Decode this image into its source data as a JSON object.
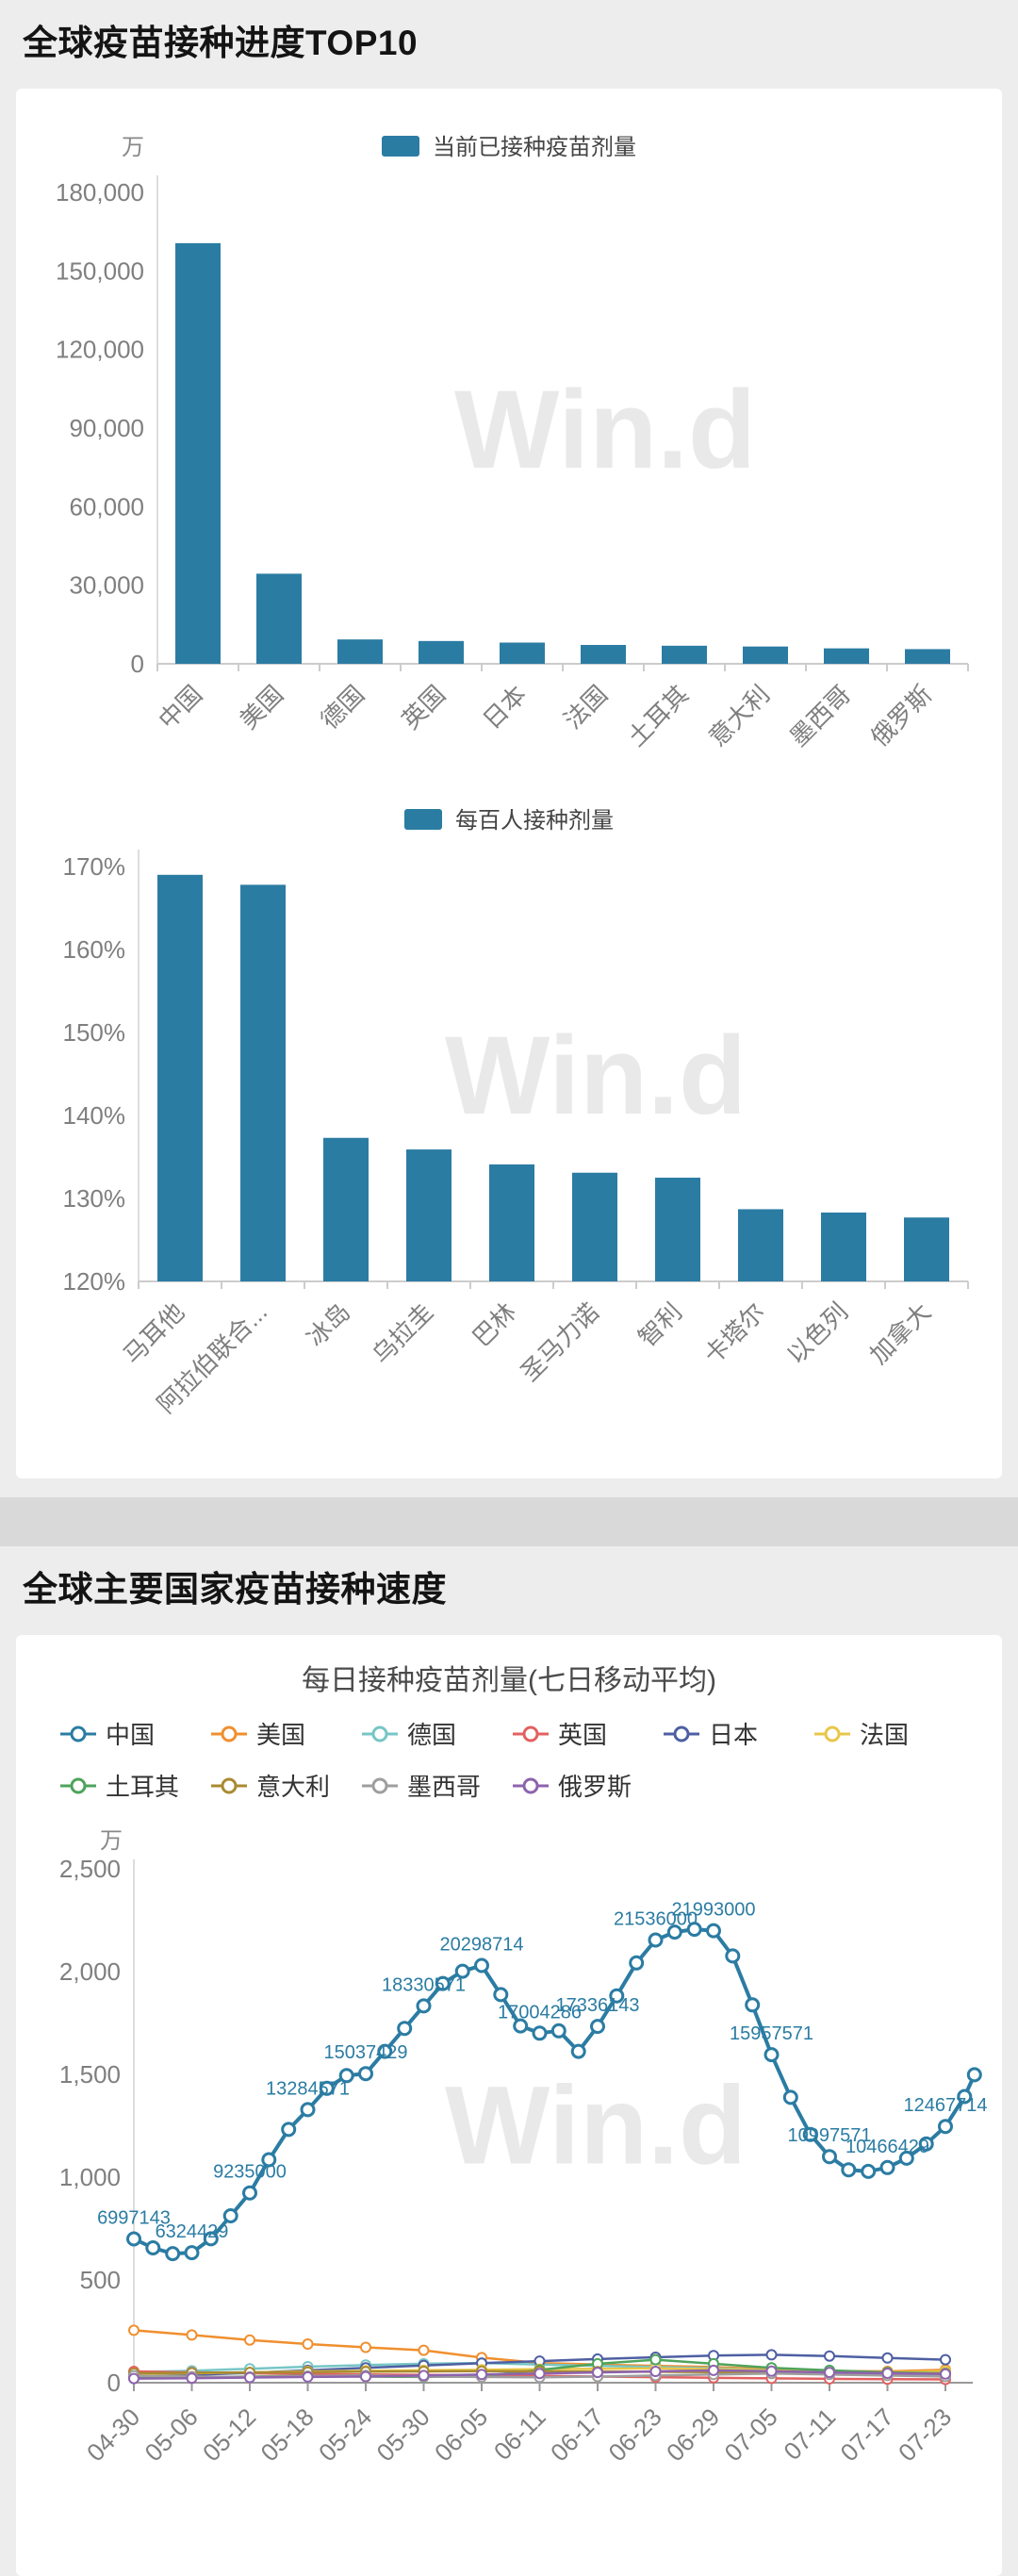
{
  "page": {
    "section1_title": "全球疫苗接种进度TOP10",
    "section2_title": "全球主要国家疫苗接种速度",
    "watermark": "Win.d",
    "background_color": "#ededed",
    "card_color": "#ffffff",
    "accent_color": "#2b7ca3"
  },
  "chart_data": [
    {
      "id": "doses-total",
      "type": "bar",
      "legend": "当前已接种疫苗剂量",
      "unit": "万",
      "categories": [
        "中国",
        "美国",
        "德国",
        "英国",
        "日本",
        "法国",
        "土耳其",
        "意大利",
        "墨西哥",
        "俄罗斯"
      ],
      "values": [
        160600,
        34400,
        9300,
        8700,
        8100,
        7200,
        6900,
        6600,
        5900,
        5600
      ],
      "ylim": [
        0,
        180000
      ],
      "y_tick_labels": [
        "0",
        "30,000",
        "60,000",
        "90,000",
        "120,000",
        "150,000",
        "180,000"
      ],
      "grid": false,
      "legend_position": "top",
      "color": "#2b7ca3"
    },
    {
      "id": "doses-per-100",
      "type": "bar",
      "legend": "每百人接种剂量",
      "unit": "",
      "categories": [
        "马耳他",
        "阿拉伯联合...",
        "冰岛",
        "乌拉圭",
        "巴林",
        "圣马力诺",
        "智利",
        "卡塔尔",
        "以色列",
        "加拿大"
      ],
      "values": [
        169.0,
        167.8,
        137.3,
        135.9,
        134.1,
        133.1,
        132.5,
        128.7,
        128.3,
        127.7
      ],
      "ylim": [
        120,
        170
      ],
      "y_tick_labels": [
        "120%",
        "130%",
        "140%",
        "150%",
        "160%",
        "170%"
      ],
      "grid": false,
      "legend_position": "top",
      "color": "#2b7ca3"
    },
    {
      "id": "daily-doses",
      "type": "line",
      "title": "每日接种疫苗剂量(七日移动平均)",
      "unit": "万",
      "ylim": [
        0,
        2500
      ],
      "y_tick_labels": [
        "0",
        "500",
        "1,000",
        "1,500",
        "2,000",
        "2,500"
      ],
      "x_tick_labels": [
        "04-30",
        "05-06",
        "05-12",
        "05-18",
        "05-24",
        "05-30",
        "06-05",
        "06-11",
        "06-17",
        "06-23",
        "06-29",
        "07-05",
        "07-11",
        "07-17",
        "07-23"
      ],
      "grid": false,
      "legend_position": "top",
      "series": [
        {
          "name": "中国",
          "color": "#2b7ca3",
          "emphasis": true,
          "points": [
            [
              0,
              699.7
            ],
            [
              0.33,
              656
            ],
            [
              0.67,
              628
            ],
            [
              1,
              632.4
            ],
            [
              1.33,
              700
            ],
            [
              1.67,
              812
            ],
            [
              2,
              923.5
            ],
            [
              2.33,
              1085
            ],
            [
              2.67,
              1232
            ],
            [
              3,
              1328.5
            ],
            [
              3.33,
              1432
            ],
            [
              3.67,
              1494
            ],
            [
              4,
              1503.7
            ],
            [
              4.33,
              1612
            ],
            [
              4.67,
              1724
            ],
            [
              5,
              1833.1
            ],
            [
              5.33,
              1942
            ],
            [
              5.67,
              2002
            ],
            [
              6,
              2029.9
            ],
            [
              6.33,
              1888
            ],
            [
              6.67,
              1736
            ],
            [
              7,
              1700.4
            ],
            [
              7.33,
              1712
            ],
            [
              7.67,
              1612
            ],
            [
              8,
              1733.6
            ],
            [
              8.33,
              1882
            ],
            [
              8.67,
              2042
            ],
            [
              9,
              2153.6
            ],
            [
              9.33,
              2192
            ],
            [
              9.67,
              2206
            ],
            [
              10,
              2199.3
            ],
            [
              10.33,
              2076
            ],
            [
              10.67,
              1838
            ],
            [
              11,
              1595.8
            ],
            [
              11.33,
              1388
            ],
            [
              11.67,
              1208
            ],
            [
              12,
              1099.8
            ],
            [
              12.33,
              1036
            ],
            [
              12.67,
              1028
            ],
            [
              13,
              1046.6
            ],
            [
              13.33,
              1092
            ],
            [
              13.67,
              1162
            ],
            [
              14,
              1246.8
            ],
            [
              14.33,
              1392
            ],
            [
              14.5,
              1498
            ]
          ],
          "labels": [
            [
              0,
              699.7,
              "6997143"
            ],
            [
              1,
              632.4,
              "6324429"
            ],
            [
              2,
              923.5,
              "9235000"
            ],
            [
              3,
              1328.5,
              "13284571"
            ],
            [
              4,
              1503.7,
              "15037429"
            ],
            [
              5,
              1833.1,
              "18330571"
            ],
            [
              6,
              2029.9,
              "20298714"
            ],
            [
              7,
              1700.4,
              "17004286"
            ],
            [
              8,
              1733.6,
              "17336143"
            ],
            [
              9,
              2153.6,
              "21536000"
            ],
            [
              10,
              2199.3,
              "21993000"
            ],
            [
              11,
              1595.8,
              "15957571"
            ],
            [
              12,
              1099.8,
              "10997571"
            ],
            [
              13,
              1046.6,
              "10466429"
            ],
            [
              14,
              1246.8,
              "12467714"
            ]
          ]
        },
        {
          "name": "美国",
          "color": "#f08f2e",
          "values": [
            255,
            232,
            208,
            188,
            172,
            158,
            122,
            96,
            88,
            82,
            76,
            66,
            57,
            55,
            63
          ]
        },
        {
          "name": "德国",
          "color": "#76c6c5",
          "values": [
            52,
            58,
            68,
            78,
            86,
            92,
            96,
            88,
            82,
            76,
            70,
            60,
            50,
            44,
            40
          ]
        },
        {
          "name": "英国",
          "color": "#e36060",
          "values": [
            55,
            50,
            46,
            42,
            40,
            38,
            36,
            33,
            30,
            27,
            24,
            21,
            19,
            17,
            16
          ]
        },
        {
          "name": "日本",
          "color": "#4e5fa2",
          "values": [
            30,
            38,
            48,
            60,
            72,
            84,
            95,
            105,
            115,
            124,
            132,
            136,
            130,
            120,
            112
          ]
        },
        {
          "name": "法国",
          "color": "#e9c649",
          "values": [
            42,
            46,
            50,
            55,
            58,
            61,
            63,
            66,
            68,
            70,
            66,
            60,
            55,
            50,
            56
          ]
        },
        {
          "name": "土耳其",
          "color": "#4ea35b",
          "values": [
            22,
            26,
            30,
            34,
            30,
            28,
            32,
            62,
            92,
            112,
            92,
            72,
            60,
            50,
            46
          ]
        },
        {
          "name": "意大利",
          "color": "#a98a31",
          "values": [
            46,
            48,
            50,
            52,
            54,
            55,
            56,
            55,
            54,
            53,
            52,
            50,
            48,
            46,
            44
          ]
        },
        {
          "name": "墨西哥",
          "color": "#9e9e9e",
          "values": [
            34,
            30,
            28,
            32,
            36,
            30,
            28,
            26,
            30,
            35,
            40,
            45,
            40,
            35,
            30
          ]
        },
        {
          "name": "俄罗斯",
          "color": "#8e63ad",
          "values": [
            20,
            22,
            25,
            28,
            30,
            35,
            40,
            45,
            50,
            55,
            60,
            56,
            50,
            46,
            42
          ]
        }
      ]
    }
  ]
}
